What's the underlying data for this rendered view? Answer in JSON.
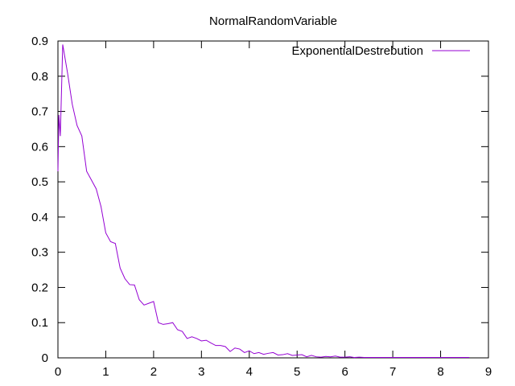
{
  "chart_data": {
    "type": "line",
    "title": "NormalRandomVariable",
    "xlabel": "",
    "ylabel": "",
    "xlim": [
      0,
      9
    ],
    "ylim": [
      0,
      0.9
    ],
    "x_ticks": [
      "0",
      "1",
      "2",
      "3",
      "4",
      "5",
      "6",
      "7",
      "8",
      "9"
    ],
    "y_ticks": [
      "0",
      "0.1",
      "0.2",
      "0.3",
      "0.4",
      "0.5",
      "0.6",
      "0.7",
      "0.8",
      "0.9"
    ],
    "grid": false,
    "legend_position": "top-right",
    "series": [
      {
        "name": "ExponentialDestrebution",
        "color": "#9400d3",
        "x": [
          0,
          0.02,
          0.05,
          0.1,
          0.2,
          0.3,
          0.4,
          0.5,
          0.6,
          0.7,
          0.8,
          0.9,
          1.0,
          1.1,
          1.2,
          1.3,
          1.4,
          1.5,
          1.6,
          1.7,
          1.8,
          1.9,
          2.0,
          2.1,
          2.2,
          2.3,
          2.4,
          2.5,
          2.6,
          2.7,
          2.8,
          2.9,
          3.0,
          3.1,
          3.2,
          3.3,
          3.4,
          3.5,
          3.6,
          3.7,
          3.8,
          3.9,
          4.0,
          4.1,
          4.2,
          4.3,
          4.4,
          4.5,
          4.6,
          4.7,
          4.8,
          4.9,
          5.0,
          5.1,
          5.2,
          5.3,
          5.4,
          5.5,
          5.6,
          5.7,
          5.8,
          5.9,
          6.0,
          6.1,
          6.2,
          6.3,
          6.4,
          6.5,
          6.6,
          6.7,
          6.8,
          6.9,
          7.0,
          7.1,
          7.2,
          7.3,
          7.4,
          7.5,
          7.6,
          7.7,
          7.8,
          7.9,
          8.0,
          8.1,
          8.2,
          8.3,
          8.4,
          8.5,
          8.6
        ],
        "values": [
          0.53,
          0.69,
          0.63,
          0.89,
          0.81,
          0.72,
          0.66,
          0.63,
          0.53,
          0.505,
          0.48,
          0.43,
          0.355,
          0.33,
          0.325,
          0.255,
          0.225,
          0.208,
          0.207,
          0.165,
          0.15,
          0.155,
          0.16,
          0.1,
          0.095,
          0.097,
          0.1,
          0.08,
          0.075,
          0.055,
          0.06,
          0.055,
          0.048,
          0.05,
          0.042,
          0.035,
          0.035,
          0.032,
          0.018,
          0.028,
          0.025,
          0.015,
          0.02,
          0.012,
          0.015,
          0.01,
          0.013,
          0.015,
          0.008,
          0.009,
          0.012,
          0.007,
          0.008,
          0.009,
          0.003,
          0.007,
          0.003,
          0.002,
          0.004,
          0.003,
          0.005,
          0.002,
          0.002,
          0.003,
          0.001,
          0.002,
          0.001,
          0.001,
          0.001,
          0.001,
          0.001,
          0.001,
          0.001,
          0.001,
          0.001,
          0.001,
          0.001,
          0.001,
          0.001,
          0.001,
          0.001,
          0.001,
          0.001,
          0.001,
          0.001,
          0.001,
          0.001,
          0.001,
          0.001
        ]
      }
    ]
  }
}
